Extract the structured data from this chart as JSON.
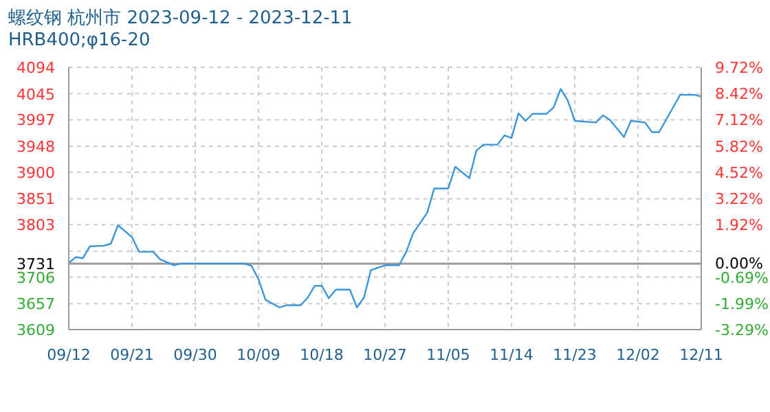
{
  "chart_data": {
    "type": "line",
    "title": "螺纹钢 杭州市 2023-09-12 - 2023-12-11",
    "subtitle": "HRB400;φ16-20",
    "x": [
      "2023-09-12",
      "2023-09-13",
      "2023-09-14",
      "2023-09-15",
      "2023-09-17",
      "2023-09-18",
      "2023-09-19",
      "2023-09-21",
      "2023-09-22",
      "2023-09-24",
      "2023-09-25",
      "2023-09-27",
      "2023-09-28",
      "2023-10-07",
      "2023-10-08",
      "2023-10-09",
      "2023-10-10",
      "2023-10-12",
      "2023-10-13",
      "2023-10-15",
      "2023-10-16",
      "2023-10-17",
      "2023-10-18",
      "2023-10-19",
      "2023-10-20",
      "2023-10-22",
      "2023-10-23",
      "2023-10-24",
      "2023-10-25",
      "2023-10-27",
      "2023-10-29",
      "2023-10-30",
      "2023-10-31",
      "2023-11-02",
      "2023-11-03",
      "2023-11-05",
      "2023-11-06",
      "2023-11-08",
      "2023-11-09",
      "2023-11-10",
      "2023-11-12",
      "2023-11-13",
      "2023-11-14",
      "2023-11-15",
      "2023-11-16",
      "2023-11-17",
      "2023-11-19",
      "2023-11-20",
      "2023-11-21",
      "2023-11-22",
      "2023-11-23",
      "2023-11-26",
      "2023-11-27",
      "2023-11-28",
      "2023-11-30",
      "2023-12-01",
      "2023-12-03",
      "2023-12-04",
      "2023-12-05",
      "2023-12-07",
      "2023-12-08",
      "2023-12-10",
      "2023-12-11"
    ],
    "series": [
      {
        "color": "#3a96d8",
        "values": [
          3732,
          3743,
          3741,
          3763,
          3764,
          3768,
          3802,
          3780,
          3753,
          3753,
          3739,
          3728,
          3731,
          3731,
          3727,
          3702,
          3664,
          3650,
          3654,
          3654,
          3668,
          3690,
          3690,
          3667,
          3683,
          3683,
          3650,
          3668,
          3719,
          3728,
          3728,
          3752,
          3787,
          3825,
          3870,
          3870,
          3910,
          3889,
          3940,
          3951,
          3951,
          3968,
          3963,
          4009,
          3995,
          4008,
          4008,
          4020,
          4054,
          4033,
          3995,
          3992,
          4005,
          3997,
          3965,
          3995,
          3992,
          3974,
          3974,
          4020,
          4043,
          4043,
          4040
        ]
      }
    ],
    "xlim": [
      "2023-09-12",
      "2023-12-11"
    ],
    "xticks": [
      {
        "value": "2023-09-12",
        "label": "09/12"
      },
      {
        "value": "2023-09-21",
        "label": "09/21"
      },
      {
        "value": "2023-09-30",
        "label": "09/30"
      },
      {
        "value": "2023-10-09",
        "label": "10/09"
      },
      {
        "value": "2023-10-18",
        "label": "10/18"
      },
      {
        "value": "2023-10-27",
        "label": "10/27"
      },
      {
        "value": "2023-11-05",
        "label": "11/05"
      },
      {
        "value": "2023-11-14",
        "label": "11/14"
      },
      {
        "value": "2023-11-23",
        "label": "11/23"
      },
      {
        "value": "2023-12-02",
        "label": "12/02"
      },
      {
        "value": "2023-12-11",
        "label": "12/11"
      }
    ],
    "ylim": [
      3609,
      4094
    ],
    "yticks": [
      3609,
      3657,
      3706,
      3731,
      {
        "value": 3754,
        "label": null
      },
      3803,
      3851,
      3900,
      3948,
      3997,
      4045,
      4094
    ],
    "y2lim": [
      -3.29,
      9.72
    ],
    "y2ticks": [
      {
        "value": -3.29,
        "label": "-3.29%"
      },
      {
        "value": -1.99,
        "label": "-1.99%"
      },
      {
        "value": -0.69,
        "label": "-0.69%"
      },
      {
        "value": 0,
        "label": "0.00%"
      },
      {
        "value": 1.92,
        "label": "1.92%"
      },
      {
        "value": 3.22,
        "label": "3.22%"
      },
      {
        "value": 4.52,
        "label": "4.52%"
      },
      {
        "value": 5.82,
        "label": "5.82%"
      },
      {
        "value": 7.12,
        "label": "7.12%"
      },
      {
        "value": 8.42,
        "label": "8.42%"
      },
      {
        "value": 9.72,
        "label": "9.72%"
      }
    ],
    "ref_lines": [
      {
        "axis": "y",
        "value": 3731,
        "color": "#999999"
      }
    ],
    "grid": true,
    "line_style": "solid",
    "marker": "none"
  }
}
